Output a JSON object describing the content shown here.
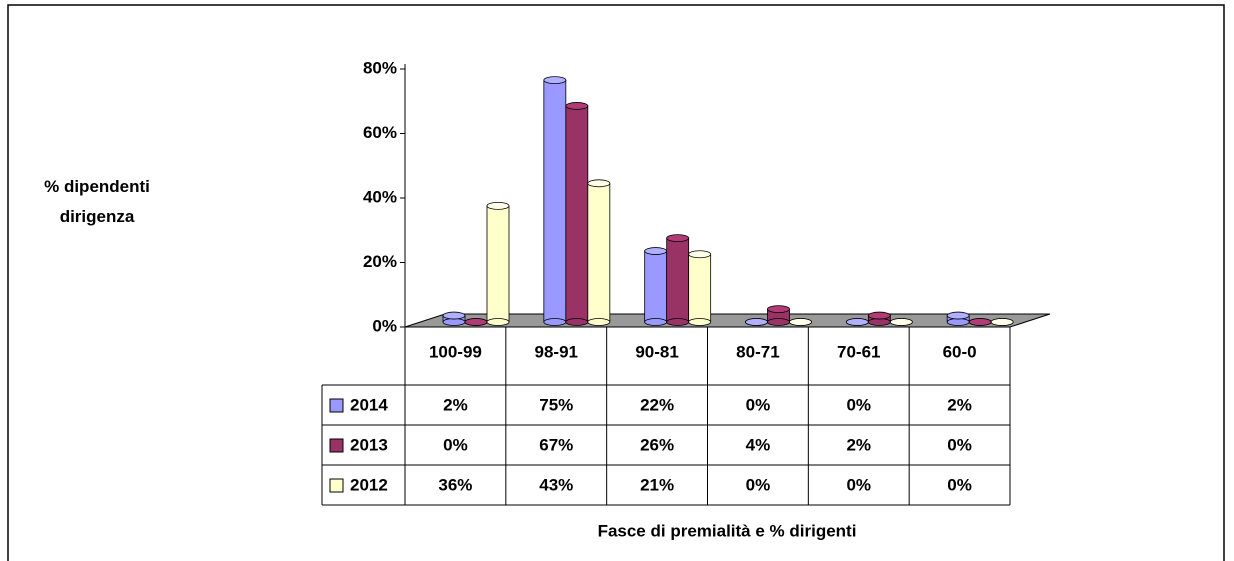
{
  "chart_data": {
    "type": "bar",
    "y_axis_label": "% dipendenti dirigenza",
    "x_axis_label": "Fasce di premialità e % dirigenti",
    "categories": [
      "100-99",
      "98-91",
      "90-81",
      "80-71",
      "70-61",
      "60-0"
    ],
    "series": [
      {
        "name": "2014",
        "color": "#9999ff",
        "values": [
          2,
          75,
          22,
          0,
          0,
          2
        ],
        "value_labels": [
          "2%",
          "75%",
          "22%",
          "0%",
          "0%",
          "2%"
        ]
      },
      {
        "name": "2013",
        "color": "#993366",
        "values": [
          0,
          67,
          26,
          4,
          2,
          0
        ],
        "value_labels": [
          "0%",
          "67%",
          "26%",
          "4%",
          "2%",
          "0%"
        ]
      },
      {
        "name": "2012",
        "color": "#ffffcc",
        "values": [
          36,
          43,
          21,
          0,
          0,
          0
        ],
        "value_labels": [
          "36%",
          "43%",
          "21%",
          "0%",
          "0%",
          "0%"
        ]
      }
    ],
    "ylim": [
      0,
      80
    ],
    "yticks": [
      {
        "value": 0,
        "label": "0%"
      },
      {
        "value": 20,
        "label": "20%"
      },
      {
        "value": 40,
        "label": "40%"
      },
      {
        "value": 60,
        "label": "60%"
      },
      {
        "value": 80,
        "label": "80%"
      }
    ],
    "grid": false,
    "legend": "table"
  }
}
